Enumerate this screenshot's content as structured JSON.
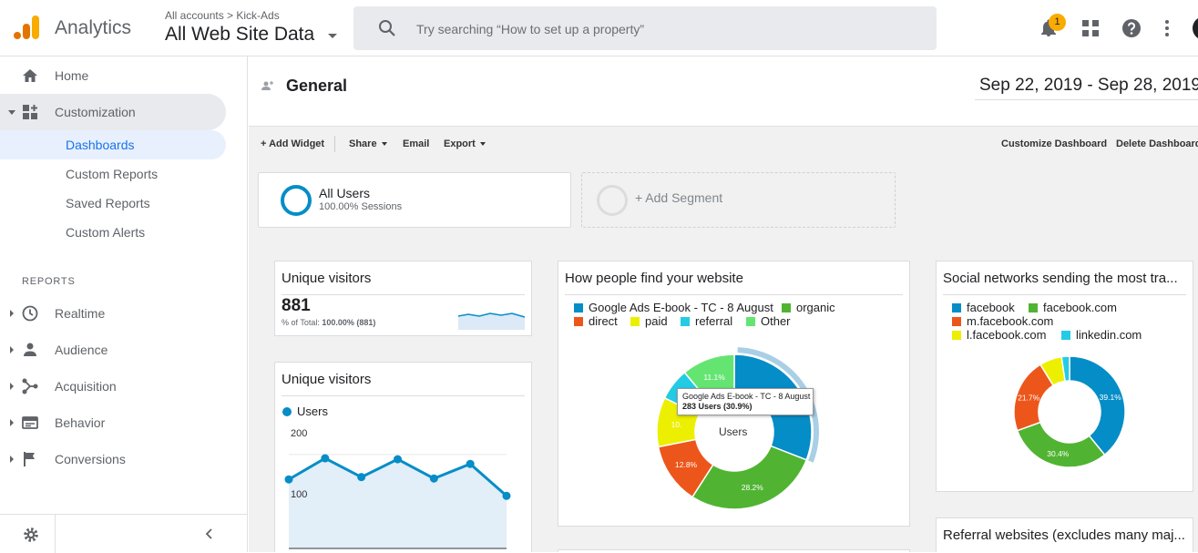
{
  "topbar": {
    "brand": "Analytics",
    "breadcrumb": "All accounts > Kick-Ads",
    "account_view": "All Web Site Data",
    "search_placeholder": "Try searching “How to set up a property”",
    "notification_count": "1"
  },
  "sidebar": {
    "home": "Home",
    "customization": "Customization",
    "custom_sub": [
      "Dashboards",
      "Custom Reports",
      "Saved Reports",
      "Custom Alerts"
    ],
    "reports_label": "REPORTS",
    "reports": [
      "Realtime",
      "Audience",
      "Acquisition",
      "Behavior",
      "Conversions"
    ]
  },
  "dashboard": {
    "title": "General",
    "date_range": "Sep 22, 2019 - Sep 28, 2019",
    "toolbar": {
      "add_widget": "+ Add Widget",
      "share": "Share",
      "email": "Email",
      "export": "Export",
      "customize": "Customize Dashboard",
      "delete": "Delete Dashboard"
    },
    "segment": {
      "name": "All Users",
      "detail": "100.00% Sessions",
      "add": "+ Add Segment"
    }
  },
  "widgets": {
    "metric": {
      "title": "Unique visitors",
      "value": "881",
      "total_prefix": "% of Total: ",
      "total_value": "100.00% (881)"
    },
    "timeline": {
      "title": "Unique visitors",
      "legend": "Users",
      "y_ticks": [
        "200",
        "100"
      ]
    },
    "find_site": {
      "title": "How people find your website",
      "legend": [
        "Google Ads E-book - TC - 8 August",
        "organic",
        "direct",
        "paid",
        "referral",
        "Other"
      ],
      "center": "Users",
      "tooltip_title": "Google Ads E-book - TC - 8 August",
      "tooltip_value": "283 Users (30.9%)",
      "slice_labels": [
        "28.2%",
        "12.8%",
        "10.",
        "6.7%",
        "11.1%"
      ]
    },
    "social": {
      "title": "Social networks sending the most tra...",
      "legend": [
        "facebook",
        "facebook.com",
        "m.facebook.com",
        "l.facebook.com",
        "linkedin.com"
      ],
      "slice_labels": [
        "39.1%",
        "30.4%",
        "21.7%"
      ]
    },
    "referral": {
      "title": "Referral websites (excludes many maj..."
    }
  },
  "colors": {
    "blue": "#058dc7",
    "green": "#50b432",
    "orange": "#ed561b",
    "yellow": "#edef00",
    "cyan": "#24cbe5",
    "lightgreen": "#64e572",
    "accent": "#1a73e8",
    "logo_orange": "#f9ab00",
    "logo_dark": "#e37400"
  },
  "chart_data": [
    {
      "type": "line",
      "title": "Unique visitors",
      "series": [
        {
          "name": "Users",
          "values": [
            147,
            192,
            152,
            190,
            149,
            180,
            112
          ]
        }
      ],
      "ylim": [
        0,
        260
      ],
      "y_ticks": [
        100,
        200
      ]
    },
    {
      "type": "pie",
      "title": "How people find your website",
      "categories": [
        "Google Ads E-book - TC - 8 August",
        "organic",
        "direct",
        "paid",
        "referral",
        "Other"
      ],
      "values": [
        30.9,
        28.2,
        12.8,
        10.3,
        6.7,
        11.1
      ],
      "center_label": "Users"
    },
    {
      "type": "pie",
      "title": "Social networks sending the most tra...",
      "categories": [
        "facebook",
        "facebook.com",
        "m.facebook.com",
        "l.facebook.com",
        "linkedin.com"
      ],
      "values": [
        39.1,
        30.4,
        21.7,
        6.5,
        2.3
      ]
    }
  ]
}
